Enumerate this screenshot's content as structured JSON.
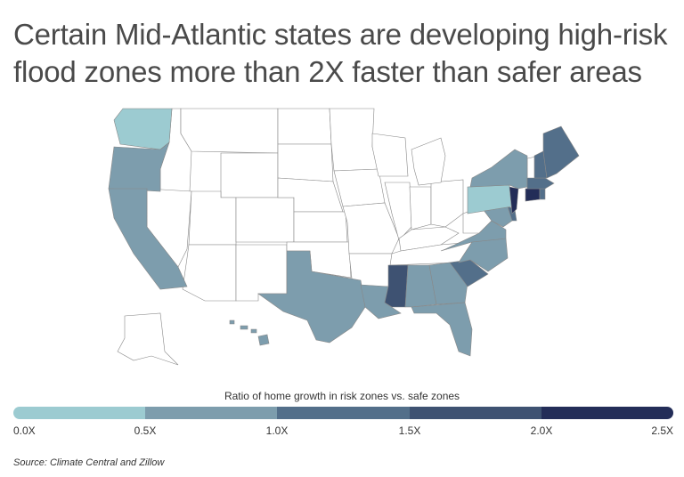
{
  "title": "Certain Mid-Atlantic states are developing high-risk flood zones more than 2X faster than safer areas",
  "legend": {
    "title": "Ratio of home growth in risk zones vs. safe zones",
    "colors": [
      "#9ccbd1",
      "#7d9dad",
      "#6a8ca0",
      "#3e5272",
      "#232d58"
    ],
    "ticks": [
      "0.0X",
      "0.5X",
      "1.0X",
      "1.5X",
      "2.0X",
      "2.5X"
    ]
  },
  "source": "Source: Climate Central and Zillow",
  "states": {
    "washington": "0.0X-0.5X",
    "oregon": "0.5X-1.0X",
    "california": "0.5X-1.0X",
    "texas": "0.5X-1.0X",
    "louisiana": "0.5X-1.0X",
    "mississippi": "1.5X-2.0X",
    "alabama": "0.5X-1.0X",
    "georgia": "0.5X-1.0X",
    "florida": "0.5X-1.0X",
    "south_carolina": "1.0X-1.5X",
    "north_carolina": "0.5X-1.0X",
    "virginia": "0.5X-1.0X",
    "maryland": "0.5X-1.0X",
    "delaware": "1.0X-1.5X",
    "new_jersey": "2.0X-2.5X",
    "pennsylvania": "0.0X-0.5X",
    "new_york": "0.5X-1.0X",
    "connecticut": "2.0X-2.5X",
    "rhode_island": "1.0X-1.5X",
    "massachusetts": "1.0X-1.5X",
    "new_hampshire": "1.0X-1.5X",
    "maine": "1.0X-1.5X",
    "hawaii": "0.5X-1.0X"
  }
}
